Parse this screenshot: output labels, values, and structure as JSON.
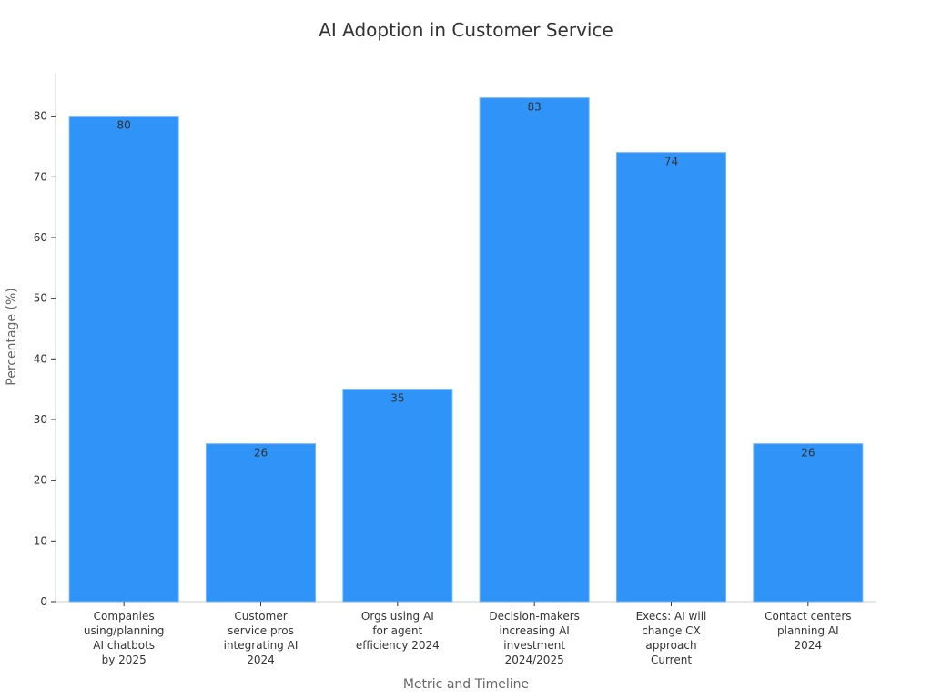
{
  "chart_data": {
    "type": "bar",
    "title": "AI Adoption in Customer Service",
    "xlabel": "Metric and Timeline",
    "ylabel": "Percentage (%)",
    "categories": [
      [
        "Companies",
        "using/planning",
        "AI chatbots",
        "by 2025"
      ],
      [
        "Customer",
        "service pros",
        "integrating AI",
        "2024"
      ],
      [
        "Orgs using AI",
        "for agent",
        "efficiency 2024"
      ],
      [
        "Decision-makers",
        "increasing AI",
        "investment",
        "2024/2025"
      ],
      [
        "Execs: AI will",
        "change CX",
        "approach",
        "Current"
      ],
      [
        "Contact centers",
        "planning AI",
        "2024"
      ]
    ],
    "values": [
      80,
      26,
      35,
      83,
      74,
      26
    ],
    "data_labels": [
      "80",
      "26",
      "35",
      "83",
      "74",
      "26"
    ],
    "yticks": [
      0,
      10,
      20,
      30,
      40,
      50,
      60,
      70,
      80
    ],
    "ylim": [
      0,
      87.15
    ],
    "bar_color": "#2f93f8",
    "grid": false,
    "legend": "none"
  }
}
